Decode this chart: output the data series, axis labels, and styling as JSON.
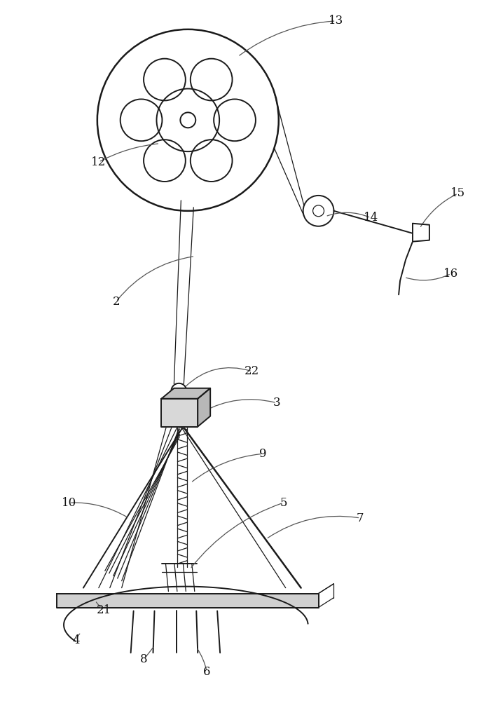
{
  "bg_color": "#ffffff",
  "line_color": "#1a1a1a",
  "label_color": "#111111",
  "lw": 1.4,
  "lw_thin": 0.9,
  "lw_thick": 1.8,
  "label_fontsize": 12,
  "leader_lw": 0.9
}
